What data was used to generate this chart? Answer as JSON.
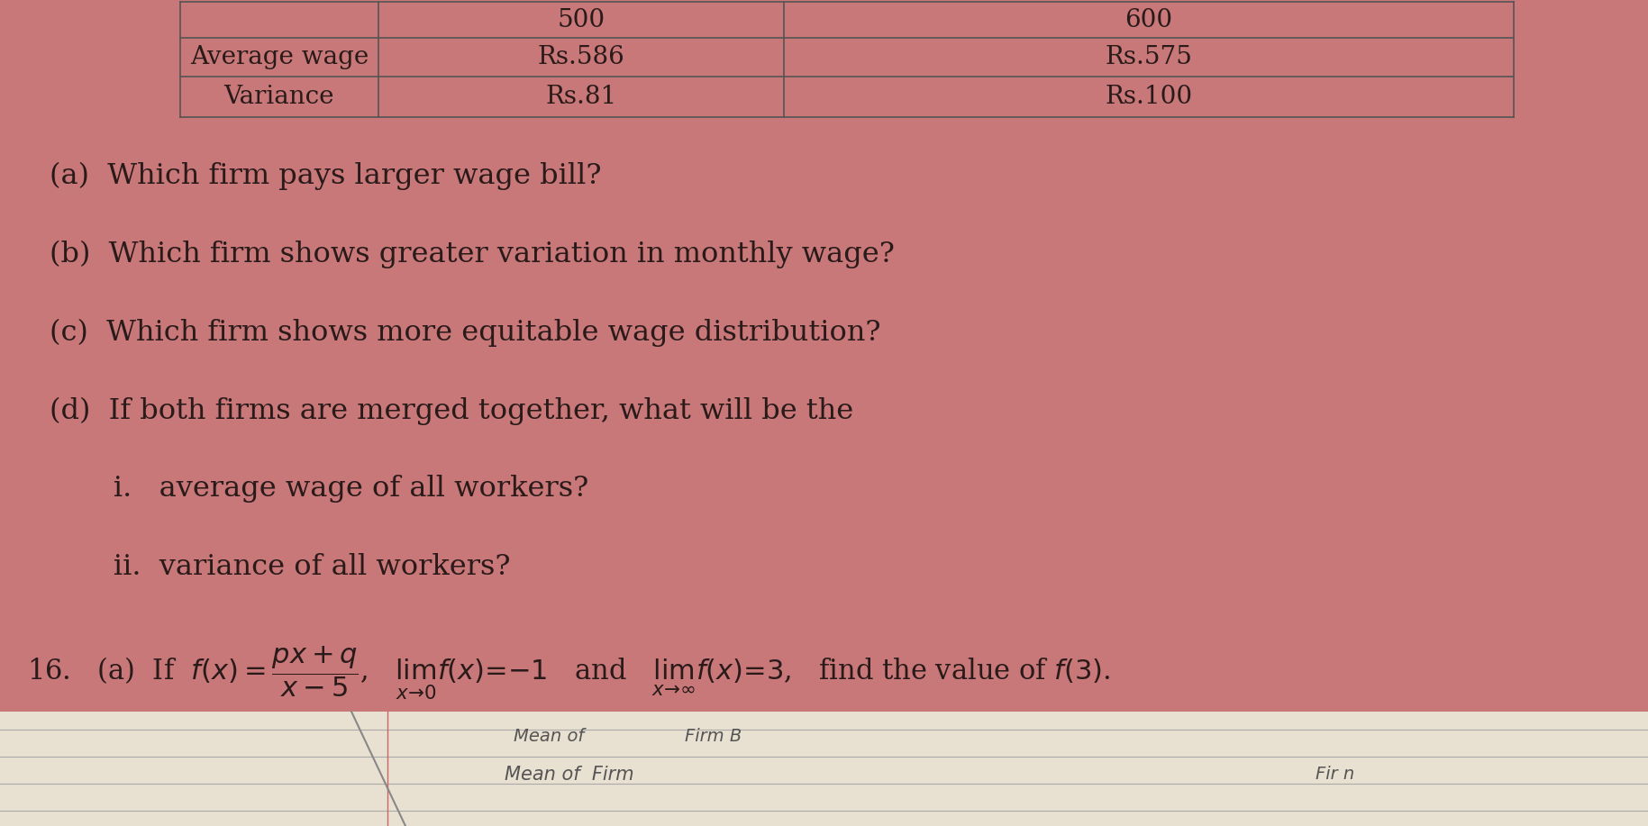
{
  "background_color": "#c87878",
  "background_color2": "#d08888",
  "text_color": "#2a1a1a",
  "table": {
    "rows": [
      "Average wage",
      "Variance"
    ],
    "col1": [
      "Rs.586",
      "Rs.81"
    ],
    "col2": [
      "Rs.575",
      "Rs.100"
    ],
    "header_col1": "500",
    "header_col2": "600"
  },
  "questions": [
    "(a)  Which firm pays larger wage bill?",
    "(b)  Which firm shows greater variation in monthly wage?",
    "(c)  Which firm shows more equitable wage distribution?",
    "(d)  If both firms are merged together, what will be the",
    "       i.   average wage of all workers?",
    "       ii.  variance of all workers?"
  ],
  "font_size_table": 20,
  "font_size_questions": 23,
  "font_size_q16": 22,
  "bottom_bg": "#e8e0d0",
  "bottom_line_color": "#aaaaaa",
  "notebook_text_color": "#555555"
}
